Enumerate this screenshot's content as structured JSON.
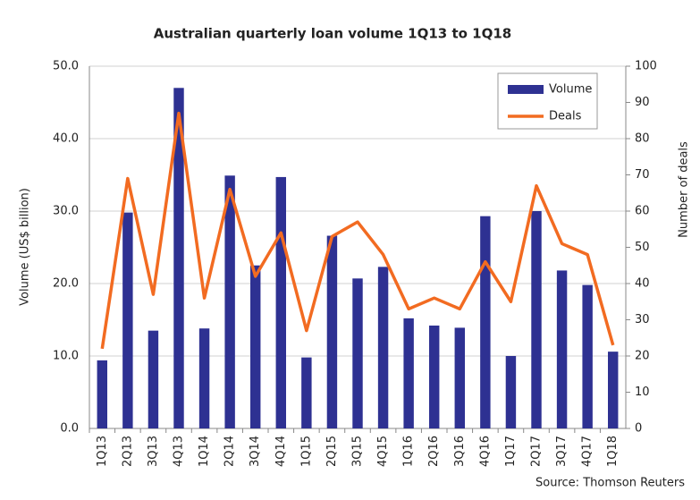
{
  "chart_data": {
    "type": "bar_line",
    "title": "Australian quarterly loan volume 1Q13 to 1Q18",
    "y_label": "Volume (US$ billion)",
    "y2_label": "Number of deals",
    "source": "Source: Thomson Reuters",
    "categories": [
      "1Q13",
      "2Q13",
      "3Q13",
      "4Q13",
      "1Q14",
      "2Q14",
      "3Q14",
      "4Q14",
      "1Q15",
      "2Q15",
      "3Q15",
      "4Q15",
      "1Q16",
      "2Q16",
      "3Q16",
      "4Q16",
      "1Q17",
      "2Q17",
      "3Q17",
      "4Q17",
      "1Q18"
    ],
    "series": [
      {
        "name": "Volume",
        "color": "#2e3192",
        "kind": "bar",
        "values": [
          9.4,
          29.8,
          13.5,
          47.0,
          13.8,
          34.9,
          22.5,
          34.7,
          9.8,
          26.6,
          20.7,
          22.3,
          15.2,
          14.2,
          13.9,
          29.3,
          10.0,
          30.0,
          21.8,
          19.8,
          10.6
        ]
      },
      {
        "name": "Deals",
        "color": "#f26b21",
        "kind": "line",
        "axis": "y2",
        "values": [
          22,
          69,
          37,
          87,
          36,
          66,
          42,
          54,
          27,
          53,
          57,
          48,
          33,
          36,
          33,
          46,
          35,
          67,
          51,
          48,
          23
        ]
      }
    ],
    "ylim": [
      0,
      50
    ],
    "yticks": [
      {
        "value": 0,
        "label": "0.0"
      },
      {
        "value": 10,
        "label": "10.0"
      },
      {
        "value": 20,
        "label": "20.0"
      },
      {
        "value": 30,
        "label": "30.0"
      },
      {
        "value": 40,
        "label": "40.0"
      },
      {
        "value": 50,
        "label": "50.0"
      }
    ],
    "y2lim": [
      0,
      100
    ],
    "y2ticks": [
      0,
      10,
      20,
      30,
      40,
      50,
      60,
      70,
      80,
      90,
      100
    ],
    "grid": true,
    "legend": "upper right"
  }
}
